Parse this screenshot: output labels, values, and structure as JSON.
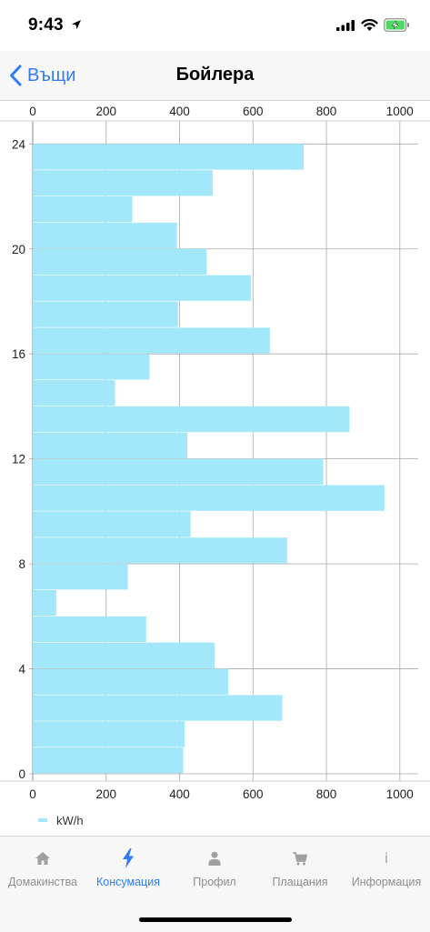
{
  "status_bar": {
    "time": "9:43",
    "icons": [
      "location-arrow-icon",
      "cellular-signal-icon",
      "wifi-icon",
      "battery-charging-icon"
    ],
    "battery_color": "#4cd964"
  },
  "nav": {
    "back_label": "Въщи",
    "title": "Бойлера",
    "accent_color": "#2f7cf6"
  },
  "chart_data": {
    "type": "bar",
    "orientation": "horizontal",
    "x_ticks": [
      "0",
      "200",
      "400",
      "600",
      "800",
      "1000"
    ],
    "y_ticks": [
      "0",
      "4",
      "8",
      "12",
      "16",
      "20",
      "24"
    ],
    "xlim": [
      0,
      1050
    ],
    "ylim": [
      0,
      24.6
    ],
    "grid": true,
    "bar_color": "#a3e7fb",
    "legend_position": "bottom-left",
    "series": [
      {
        "name": "kW/h",
        "y": [
          1,
          2,
          3,
          4,
          5,
          6,
          7,
          8,
          9,
          10,
          11,
          12,
          13,
          14,
          15,
          16,
          17,
          18,
          19,
          20,
          21,
          22,
          23,
          24
        ],
        "values": [
          410,
          414,
          680,
          533,
          496,
          309,
          64,
          259,
          693,
          430,
          958,
          791,
          421,
          863,
          224,
          318,
          646,
          396,
          595,
          474,
          393,
          271,
          490,
          738
        ]
      }
    ]
  },
  "tabs": [
    {
      "label": "Домакинства",
      "icon": "home-icon",
      "active": false
    },
    {
      "label": "Консумация",
      "icon": "lightning-icon",
      "active": true
    },
    {
      "label": "Профил",
      "icon": "person-icon",
      "active": false
    },
    {
      "label": "Плащания",
      "icon": "cart-icon",
      "active": false
    },
    {
      "label": "Информация",
      "icon": "info-icon",
      "active": false
    }
  ],
  "tab_colors": {
    "active": "#2f7cf6",
    "inactive": "#a0a0a0"
  }
}
